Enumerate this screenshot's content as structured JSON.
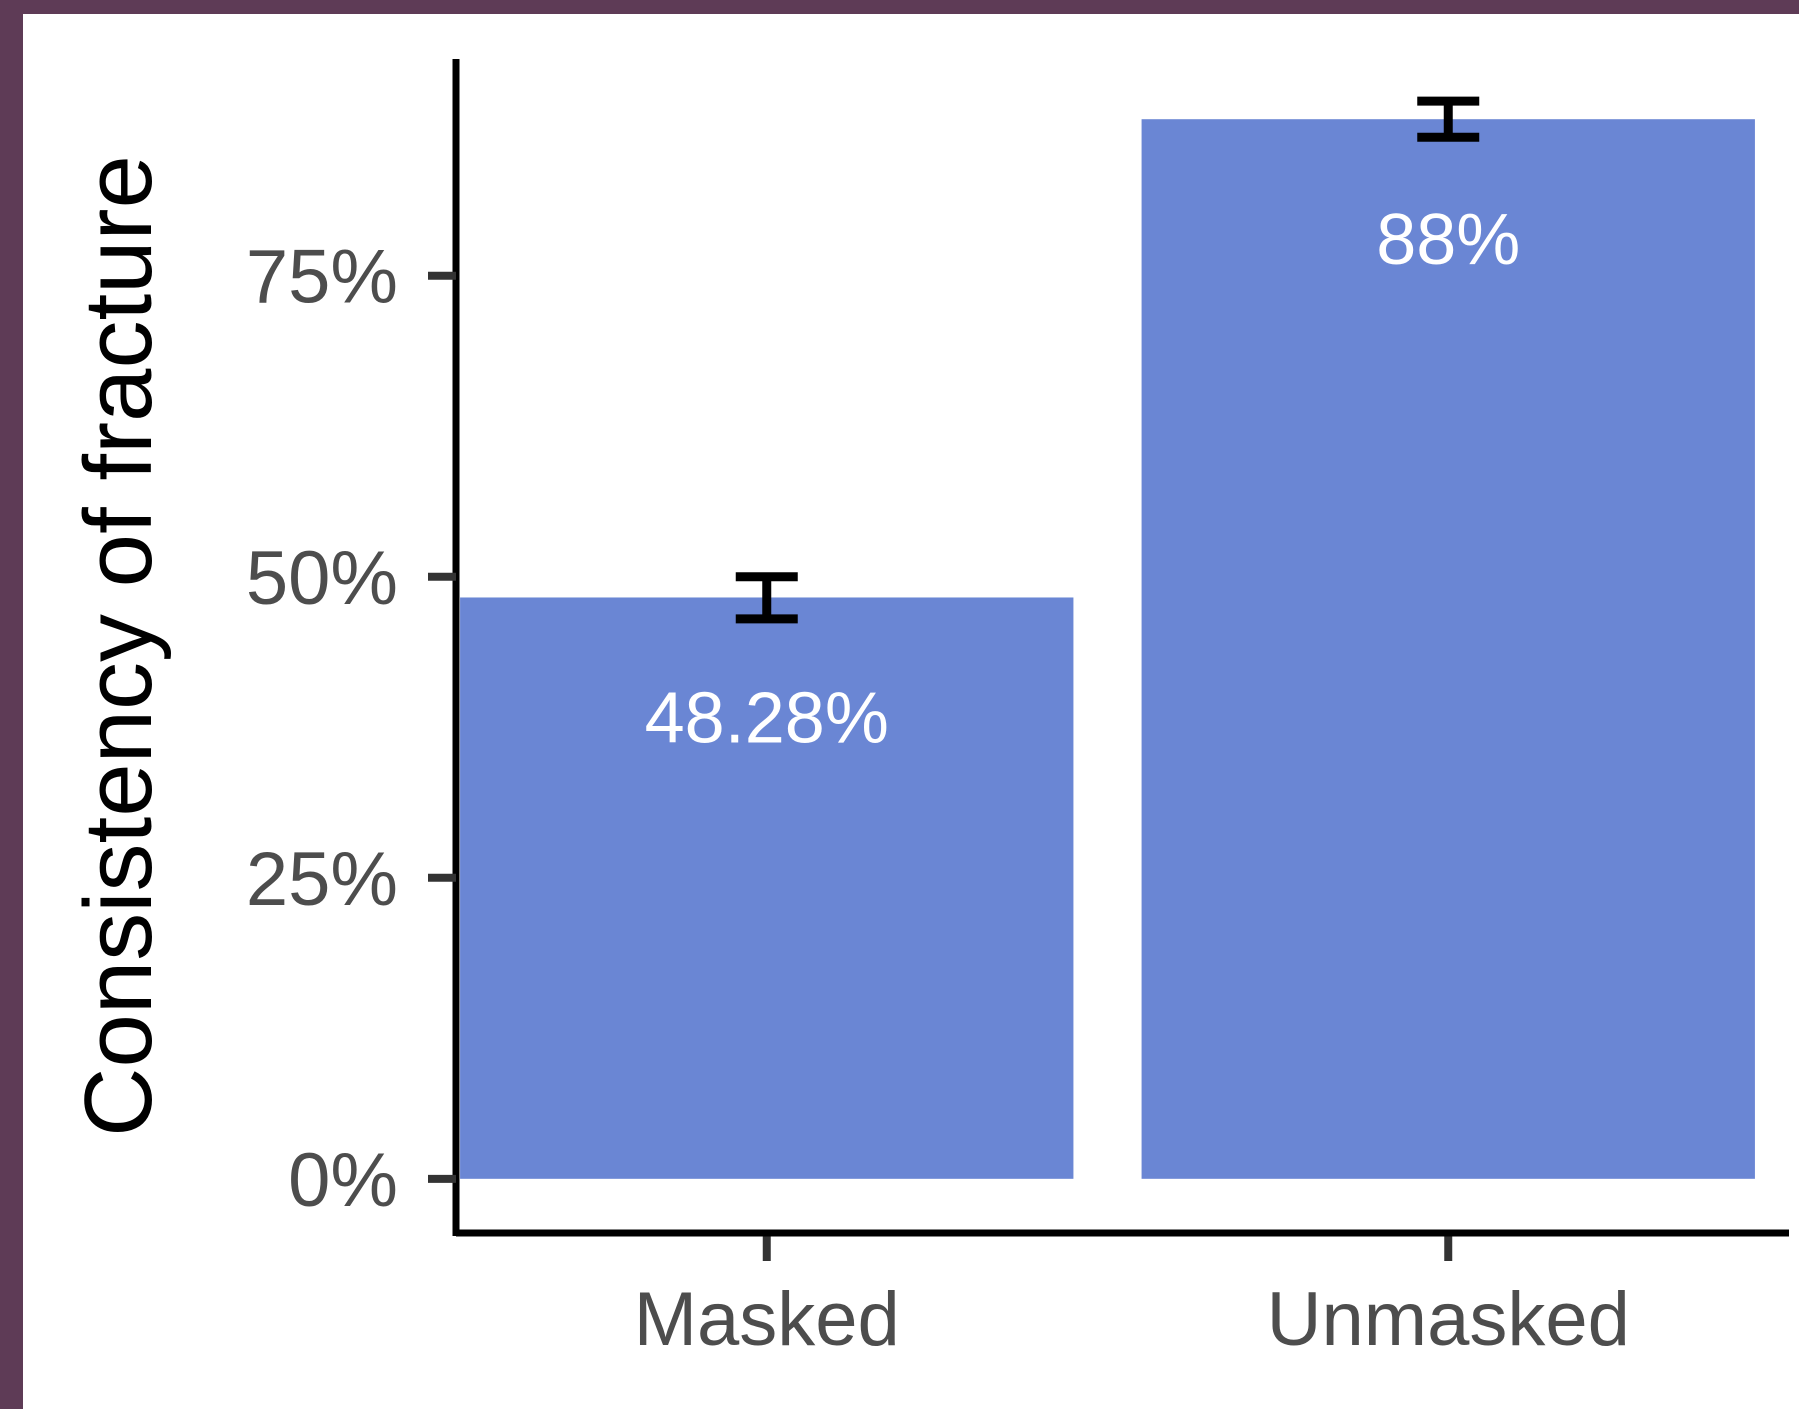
{
  "chart_data": {
    "type": "bar",
    "categories": [
      "Masked",
      "Unmasked"
    ],
    "values": [
      48.28,
      88
    ],
    "value_labels": [
      "48.28%",
      "88%"
    ],
    "error_bars": [
      {
        "low": 46.5,
        "high": 50.0
      },
      {
        "low": 86.5,
        "high": 89.5
      }
    ],
    "title": "",
    "xlabel": "",
    "ylabel": "Consistency of fracture",
    "ylim": [
      -4.5,
      93
    ],
    "yticks": [
      0,
      25,
      50,
      75
    ],
    "ytick_labels": [
      "0%",
      "25%",
      "50%",
      "75%"
    ],
    "bar_color": "#6a86d4",
    "grid": false,
    "legend": "none"
  }
}
